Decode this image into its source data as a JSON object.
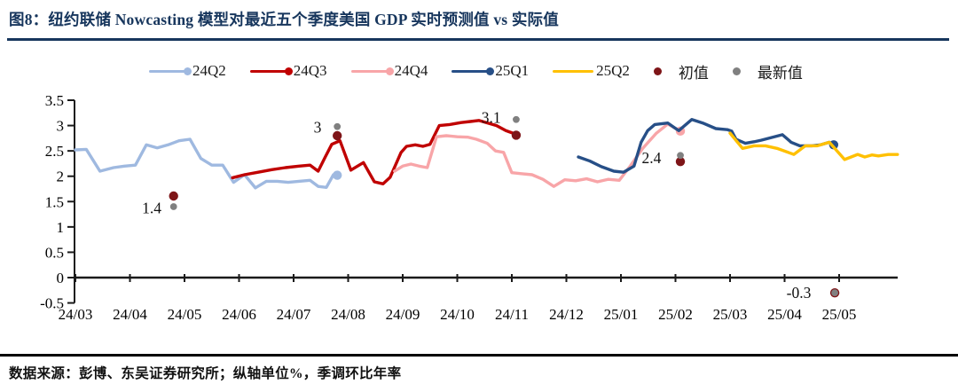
{
  "figure": {
    "title": "图8：纽约联储 Nowcasting 模型对最近五个季度美国 GDP 实时预测值 vs 实际值",
    "source_note": "数据来源：彭博、东吴证券研究所；纵轴单位%，季调环比年率"
  },
  "colors": {
    "title_navy": "#17365d",
    "axis": "#1a1a1a",
    "q24q2": "#9fb9e0",
    "q24q3": "#c00000",
    "q24q4": "#f8a5a8",
    "q25q1": "#274f87",
    "q25q2": "#ffc000",
    "first_value": "#7e1518",
    "latest_value": "#808080"
  },
  "chart_data": {
    "type": "line",
    "title": "纽约联储 Nowcasting 模型对最近五个季度美国 GDP 实时预测值 vs 实际值",
    "xlabel": "",
    "ylabel": "%（季调环比年率）",
    "ylim": [
      -0.5,
      3.5
    ],
    "grid": false,
    "legend_position": "top",
    "y_tick_labels": [
      "3.5",
      "3",
      "2.5",
      "2",
      "1.5",
      "1",
      "0.5",
      "0",
      "-0.5"
    ],
    "y_tick_values": [
      3.5,
      3,
      2.5,
      2,
      1.5,
      1,
      0.5,
      0,
      -0.5
    ],
    "x_tick_labels": [
      "24/03",
      "24/04",
      "24/05",
      "24/06",
      "24/07",
      "24/08",
      "24/09",
      "24/10",
      "24/11",
      "24/12",
      "25/01",
      "25/02",
      "25/03",
      "25/04",
      "25/05"
    ],
    "legend": [
      {
        "label": "24Q2",
        "color": "#9fb9e0",
        "type": "line-dot"
      },
      {
        "label": "24Q3",
        "color": "#c00000",
        "type": "line-dot"
      },
      {
        "label": "24Q4",
        "color": "#f8a5a8",
        "type": "line-dot"
      },
      {
        "label": "25Q1",
        "color": "#274f87",
        "type": "line-dot"
      },
      {
        "label": "25Q2",
        "color": "#ffc000",
        "type": "line"
      },
      {
        "label": "初值",
        "color": "#7e1518",
        "type": "dot"
      },
      {
        "label": "最新值",
        "color": "#808080",
        "type": "dot"
      }
    ],
    "series": [
      {
        "name": "24Q2",
        "color": "#9fb9e0",
        "end_dot": true,
        "points": [
          [
            0,
            2.52
          ],
          [
            0.2,
            2.53
          ],
          [
            0.45,
            2.1
          ],
          [
            0.7,
            2.17
          ],
          [
            0.9,
            2.2
          ],
          [
            1.1,
            2.22
          ],
          [
            1.3,
            2.62
          ],
          [
            1.5,
            2.56
          ],
          [
            1.7,
            2.62
          ],
          [
            1.9,
            2.7
          ],
          [
            2.1,
            2.73
          ],
          [
            2.3,
            2.35
          ],
          [
            2.5,
            2.22
          ],
          [
            2.7,
            2.22
          ],
          [
            2.9,
            1.88
          ],
          [
            3.1,
            2.03
          ],
          [
            3.3,
            1.77
          ],
          [
            3.5,
            1.9
          ],
          [
            3.7,
            1.9
          ],
          [
            3.9,
            1.88
          ],
          [
            4.1,
            1.9
          ],
          [
            4.3,
            1.92
          ],
          [
            4.45,
            1.8
          ],
          [
            4.6,
            1.78
          ],
          [
            4.73,
            2.03
          ],
          [
            4.8,
            2.02
          ]
        ]
      },
      {
        "name": "24Q3",
        "color": "#c00000",
        "end_dot": false,
        "points": [
          [
            2.88,
            1.97
          ],
          [
            3.1,
            2.03
          ],
          [
            3.35,
            2.08
          ],
          [
            3.6,
            2.13
          ],
          [
            3.85,
            2.17
          ],
          [
            4.1,
            2.2
          ],
          [
            4.3,
            2.22
          ],
          [
            4.45,
            2.1
          ],
          [
            4.58,
            2.38
          ],
          [
            4.7,
            2.63
          ],
          [
            4.85,
            2.7
          ],
          [
            5.05,
            2.12
          ],
          [
            5.28,
            2.27
          ],
          [
            5.48,
            1.89
          ],
          [
            5.64,
            1.85
          ],
          [
            5.77,
            1.98
          ],
          [
            5.97,
            2.47
          ],
          [
            6.07,
            2.59
          ],
          [
            6.23,
            2.62
          ],
          [
            6.37,
            2.59
          ],
          [
            6.5,
            2.63
          ],
          [
            6.67,
            3.0
          ],
          [
            6.86,
            3.02
          ],
          [
            7.07,
            3.06
          ],
          [
            7.24,
            3.08
          ],
          [
            7.4,
            3.1
          ],
          [
            7.56,
            3.05
          ],
          [
            7.72,
            3.0
          ],
          [
            7.89,
            2.9
          ],
          [
            8.07,
            2.83
          ]
        ]
      },
      {
        "name": "24Q4",
        "color": "#f8a5a8",
        "end_dot": true,
        "points": [
          [
            5.85,
            2.1
          ],
          [
            6.0,
            2.2
          ],
          [
            6.15,
            2.24
          ],
          [
            6.3,
            2.2
          ],
          [
            6.45,
            2.17
          ],
          [
            6.62,
            2.78
          ],
          [
            6.8,
            2.8
          ],
          [
            7.0,
            2.78
          ],
          [
            7.2,
            2.77
          ],
          [
            7.35,
            2.73
          ],
          [
            7.55,
            2.65
          ],
          [
            7.7,
            2.5
          ],
          [
            7.85,
            2.47
          ],
          [
            8.0,
            2.07
          ],
          [
            8.17,
            2.05
          ],
          [
            8.37,
            2.03
          ],
          [
            8.57,
            1.94
          ],
          [
            8.77,
            1.8
          ],
          [
            8.97,
            1.93
          ],
          [
            9.17,
            1.91
          ],
          [
            9.37,
            1.95
          ],
          [
            9.57,
            1.89
          ],
          [
            9.77,
            1.94
          ],
          [
            9.97,
            1.92
          ],
          [
            10.17,
            2.2
          ],
          [
            10.4,
            2.55
          ],
          [
            10.65,
            2.85
          ],
          [
            10.86,
            3.03
          ],
          [
            11.09,
            2.89
          ]
        ]
      },
      {
        "name": "25Q1",
        "color": "#274f87",
        "end_dot": true,
        "points": [
          [
            9.22,
            2.38
          ],
          [
            9.43,
            2.3
          ],
          [
            9.64,
            2.19
          ],
          [
            9.87,
            2.1
          ],
          [
            10.05,
            2.08
          ],
          [
            10.24,
            2.2
          ],
          [
            10.37,
            2.67
          ],
          [
            10.49,
            2.9
          ],
          [
            10.62,
            3.02
          ],
          [
            10.86,
            3.05
          ],
          [
            11.06,
            2.9
          ],
          [
            11.3,
            3.12
          ],
          [
            11.5,
            3.05
          ],
          [
            11.74,
            2.94
          ],
          [
            11.95,
            2.92
          ],
          [
            12.03,
            2.89
          ],
          [
            12.11,
            2.73
          ],
          [
            12.28,
            2.65
          ],
          [
            12.44,
            2.68
          ],
          [
            12.57,
            2.71
          ],
          [
            12.96,
            2.82
          ],
          [
            13.12,
            2.67
          ],
          [
            13.28,
            2.6
          ],
          [
            13.5,
            2.6
          ],
          [
            13.66,
            2.62
          ],
          [
            13.82,
            2.67
          ],
          [
            13.9,
            2.62
          ]
        ]
      },
      {
        "name": "25Q2",
        "color": "#ffc000",
        "end_dot": false,
        "points": [
          [
            12.0,
            2.85
          ],
          [
            12.23,
            2.55
          ],
          [
            12.44,
            2.6
          ],
          [
            12.65,
            2.6
          ],
          [
            12.86,
            2.55
          ],
          [
            13.17,
            2.43
          ],
          [
            13.38,
            2.6
          ],
          [
            13.6,
            2.6
          ],
          [
            13.82,
            2.67
          ],
          [
            14.1,
            2.33
          ],
          [
            14.34,
            2.43
          ],
          [
            14.47,
            2.38
          ],
          [
            14.6,
            2.42
          ],
          [
            14.72,
            2.4
          ],
          [
            14.9,
            2.43
          ],
          [
            15.07,
            2.43
          ]
        ]
      }
    ],
    "markers": {
      "first": {
        "label": "初值",
        "color": "#7e1518",
        "points": [
          [
            1.8,
            1.61
          ],
          [
            4.8,
            2.8
          ],
          [
            8.08,
            2.81
          ],
          [
            11.09,
            2.29
          ],
          [
            13.92,
            -0.3
          ]
        ]
      },
      "latest": {
        "label": "最新值",
        "color": "#808080",
        "points": [
          [
            1.8,
            1.4
          ],
          [
            4.8,
            2.98
          ],
          [
            8.08,
            3.12
          ],
          [
            11.09,
            2.41
          ],
          [
            13.92,
            -0.3
          ]
        ]
      }
    },
    "annotations": [
      {
        "text": "1.4",
        "x": 1.4,
        "y": 1.37
      },
      {
        "text": "3",
        "x": 4.44,
        "y": 2.97
      },
      {
        "text": "3.1",
        "x": 7.62,
        "y": 3.16
      },
      {
        "text": "2.4",
        "x": 10.56,
        "y": 2.36
      },
      {
        "text": "-0.3",
        "x": 13.26,
        "y": -0.3
      }
    ]
  }
}
